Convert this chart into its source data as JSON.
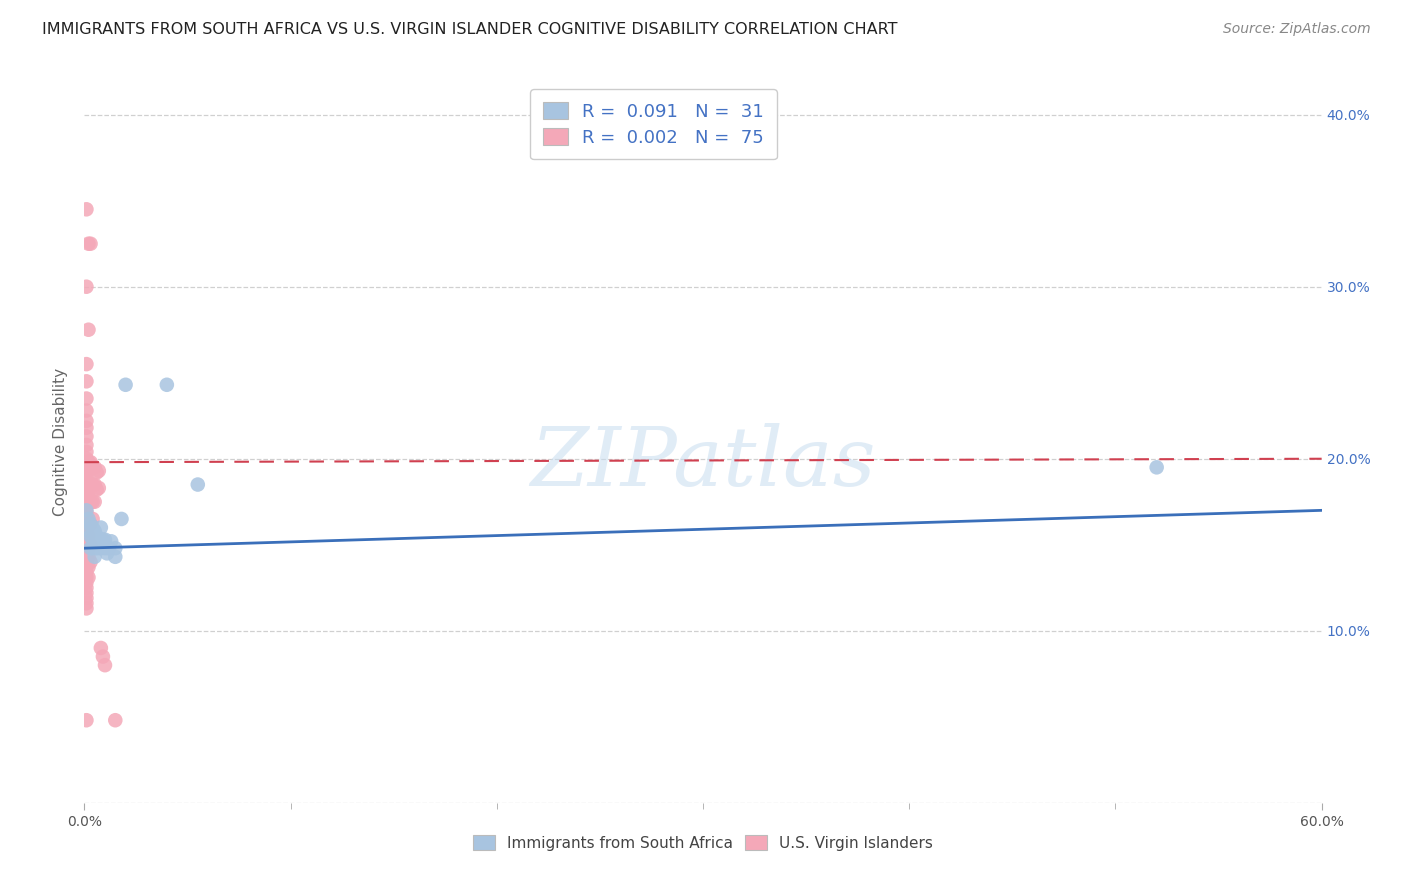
{
  "title": "IMMIGRANTS FROM SOUTH AFRICA VS U.S. VIRGIN ISLANDER COGNITIVE DISABILITY CORRELATION CHART",
  "source": "Source: ZipAtlas.com",
  "ylabel": "Cognitive Disability",
  "xlim": [
    0.0,
    0.6
  ],
  "ylim": [
    0.0,
    0.42
  ],
  "xticks": [
    0.0,
    0.6
  ],
  "xtick_labels": [
    "0.0%",
    "60.0%"
  ],
  "yticks": [
    0.0,
    0.1,
    0.2,
    0.3,
    0.4
  ],
  "ytick_labels_right": [
    "",
    "10.0%",
    "20.0%",
    "30.0%",
    "40.0%"
  ],
  "blue_R": 0.091,
  "blue_N": 31,
  "pink_R": 0.002,
  "pink_N": 75,
  "blue_color": "#a8c4e0",
  "pink_color": "#f4a8b8",
  "blue_line_color": "#3a6fba",
  "pink_line_color": "#d04050",
  "blue_scatter": [
    [
      0.001,
      0.17
    ],
    [
      0.002,
      0.165
    ],
    [
      0.002,
      0.158
    ],
    [
      0.003,
      0.162
    ],
    [
      0.003,
      0.155
    ],
    [
      0.003,
      0.148
    ],
    [
      0.004,
      0.16
    ],
    [
      0.004,
      0.153
    ],
    [
      0.004,
      0.148
    ],
    [
      0.005,
      0.158
    ],
    [
      0.005,
      0.15
    ],
    [
      0.005,
      0.143
    ],
    [
      0.006,
      0.155
    ],
    [
      0.006,
      0.148
    ],
    [
      0.007,
      0.153
    ],
    [
      0.008,
      0.16
    ],
    [
      0.008,
      0.153
    ],
    [
      0.008,
      0.148
    ],
    [
      0.009,
      0.153
    ],
    [
      0.01,
      0.153
    ],
    [
      0.01,
      0.148
    ],
    [
      0.011,
      0.145
    ],
    [
      0.012,
      0.148
    ],
    [
      0.013,
      0.152
    ],
    [
      0.015,
      0.148
    ],
    [
      0.015,
      0.143
    ],
    [
      0.018,
      0.165
    ],
    [
      0.02,
      0.243
    ],
    [
      0.04,
      0.243
    ],
    [
      0.055,
      0.185
    ],
    [
      0.52,
      0.195
    ]
  ],
  "pink_scatter": [
    [
      0.001,
      0.345
    ],
    [
      0.002,
      0.325
    ],
    [
      0.003,
      0.325
    ],
    [
      0.001,
      0.3
    ],
    [
      0.002,
      0.275
    ],
    [
      0.001,
      0.255
    ],
    [
      0.001,
      0.245
    ],
    [
      0.001,
      0.235
    ],
    [
      0.001,
      0.228
    ],
    [
      0.001,
      0.222
    ],
    [
      0.001,
      0.218
    ],
    [
      0.001,
      0.213
    ],
    [
      0.001,
      0.208
    ],
    [
      0.001,
      0.204
    ],
    [
      0.001,
      0.2
    ],
    [
      0.001,
      0.196
    ],
    [
      0.001,
      0.193
    ],
    [
      0.001,
      0.19
    ],
    [
      0.001,
      0.187
    ],
    [
      0.001,
      0.184
    ],
    [
      0.001,
      0.181
    ],
    [
      0.001,
      0.178
    ],
    [
      0.001,
      0.175
    ],
    [
      0.001,
      0.172
    ],
    [
      0.001,
      0.169
    ],
    [
      0.001,
      0.166
    ],
    [
      0.001,
      0.163
    ],
    [
      0.001,
      0.16
    ],
    [
      0.001,
      0.157
    ],
    [
      0.001,
      0.155
    ],
    [
      0.001,
      0.152
    ],
    [
      0.001,
      0.149
    ],
    [
      0.001,
      0.146
    ],
    [
      0.001,
      0.143
    ],
    [
      0.001,
      0.14
    ],
    [
      0.001,
      0.137
    ],
    [
      0.001,
      0.134
    ],
    [
      0.001,
      0.131
    ],
    [
      0.001,
      0.128
    ],
    [
      0.001,
      0.125
    ],
    [
      0.001,
      0.122
    ],
    [
      0.001,
      0.119
    ],
    [
      0.001,
      0.116
    ],
    [
      0.001,
      0.113
    ],
    [
      0.002,
      0.198
    ],
    [
      0.002,
      0.185
    ],
    [
      0.002,
      0.178
    ],
    [
      0.002,
      0.162
    ],
    [
      0.002,
      0.155
    ],
    [
      0.002,
      0.148
    ],
    [
      0.002,
      0.143
    ],
    [
      0.002,
      0.137
    ],
    [
      0.002,
      0.131
    ],
    [
      0.003,
      0.198
    ],
    [
      0.003,
      0.185
    ],
    [
      0.003,
      0.175
    ],
    [
      0.003,
      0.162
    ],
    [
      0.003,
      0.15
    ],
    [
      0.003,
      0.14
    ],
    [
      0.004,
      0.195
    ],
    [
      0.004,
      0.185
    ],
    [
      0.004,
      0.175
    ],
    [
      0.004,
      0.165
    ],
    [
      0.005,
      0.195
    ],
    [
      0.005,
      0.185
    ],
    [
      0.005,
      0.175
    ],
    [
      0.006,
      0.192
    ],
    [
      0.006,
      0.182
    ],
    [
      0.007,
      0.193
    ],
    [
      0.007,
      0.183
    ],
    [
      0.008,
      0.09
    ],
    [
      0.009,
      0.085
    ],
    [
      0.01,
      0.08
    ],
    [
      0.015,
      0.048
    ],
    [
      0.001,
      0.048
    ]
  ],
  "blue_trend_x": [
    0.0,
    0.6
  ],
  "blue_trend_y": [
    0.148,
    0.17
  ],
  "pink_trend_x": [
    0.0,
    0.6
  ],
  "pink_trend_y": [
    0.198,
    0.2
  ],
  "watermark_text": "ZIPatlas",
  "legend1_label": "Immigrants from South Africa",
  "legend2_label": "U.S. Virgin Islanders",
  "background_color": "#ffffff",
  "grid_color": "#d0d0d0",
  "legend_color": "#4472c4",
  "xtick_minor": [
    0.1,
    0.2,
    0.3,
    0.4,
    0.5
  ]
}
